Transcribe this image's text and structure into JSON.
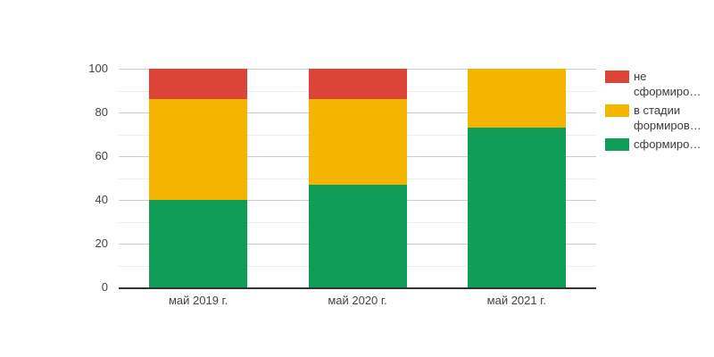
{
  "chart_data": {
    "type": "bar",
    "stacked": true,
    "title": "",
    "xlabel": "",
    "ylabel": "",
    "categories": [
      "май 2019 г.",
      "май 2020 г.",
      "май 2021 г."
    ],
    "series": [
      {
        "name": "не сформиро…",
        "color": "#DB4437",
        "values": [
          14,
          14,
          0
        ]
      },
      {
        "name": "в стадии формиров…",
        "color": "#F4B400",
        "values": [
          46,
          39,
          27
        ]
      },
      {
        "name": "сформиро…",
        "color": "#0F9D58",
        "values": [
          40,
          47,
          73
        ]
      }
    ],
    "stack_order": "first series on top",
    "ylim": [
      0,
      100
    ],
    "y_ticks": [
      0,
      20,
      40,
      60,
      80,
      100
    ],
    "minor_gridlines": [
      10,
      30,
      50,
      70,
      90
    ],
    "grid": true,
    "legend_position": "right",
    "colors": {
      "background": "#ffffff",
      "major_gridline": "#cccccc",
      "minor_gridline": "#ededed",
      "baseline": "#333333",
      "axis_text": "#444444",
      "legend_text": "#3c3c3c"
    }
  }
}
